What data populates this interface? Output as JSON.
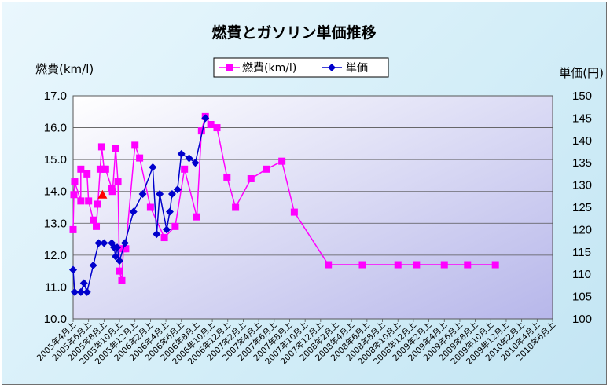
{
  "chart_data": {
    "type": "line",
    "title": "燃費とガソリン単価推移",
    "ylabel_left": "燃費(km/l)",
    "ylabel_right": "単価(円)",
    "ylim_left": [
      10.0,
      17.0
    ],
    "yticks_left": [
      "10.0",
      "11.0",
      "12.0",
      "13.0",
      "14.0",
      "15.0",
      "16.0",
      "17.0"
    ],
    "ylim_right": [
      100,
      150
    ],
    "yticks_right": [
      "100",
      "105",
      "110",
      "115",
      "120",
      "125",
      "130",
      "135",
      "140",
      "145",
      "150"
    ],
    "grid": true,
    "legend": "top-center",
    "categories": [
      "2005年4月上",
      "2005年6月上",
      "2005年8月上",
      "2005年10月上",
      "2005年12月上",
      "2006年2月上",
      "2006年4月上",
      "2006年6月上",
      "2006年8月上",
      "2006年10月上",
      "2006年12月上",
      "2007年2月上",
      "2007年4月上",
      "2007年6月上",
      "2007年8月上",
      "2007年10月上",
      "2007年12月上",
      "2008年2月上",
      "2008年4月上",
      "2008年6月上",
      "2008年8月上",
      "2008年10月上",
      "2008年12月上",
      "2009年2月上",
      "2009年4月上",
      "2009年6月上",
      "2009年8月上",
      "2009年10月上",
      "2009年12月上",
      "2010年2月上",
      "2010年4月上",
      "2010年6月上"
    ],
    "marker": {
      "x": 1.9,
      "value": 13.9,
      "color": "#ff0000"
    },
    "series": [
      {
        "name": "燃費(km/l)",
        "axis": "left",
        "color": "#ff00ff",
        "x": [
          0.0,
          0.05,
          0.1,
          0.5,
          0.5,
          0.9,
          1.0,
          1.3,
          1.5,
          1.6,
          1.75,
          1.85,
          2.0,
          2.1,
          2.5,
          2.55,
          2.75,
          2.9,
          3.0,
          3.15,
          3.25,
          3.4,
          4.0,
          4.3,
          5.0,
          5.9,
          6.6,
          7.2,
          8.0,
          8.3,
          8.55,
          8.9,
          9.3,
          9.95,
          10.5,
          11.5,
          12.5,
          13.5,
          14.3,
          16.5,
          18.7,
          21.0,
          22.2,
          24.0,
          25.5,
          27.3
        ],
        "values": [
          12.8,
          13.9,
          14.3,
          13.7,
          14.7,
          14.55,
          13.7,
          13.1,
          12.9,
          13.6,
          14.7,
          15.4,
          14.7,
          14.7,
          14.1,
          14.0,
          15.35,
          14.3,
          11.5,
          11.2,
          12.2,
          12.2,
          15.45,
          15.05,
          13.5,
          12.55,
          12.9,
          14.7,
          13.2,
          15.9,
          16.35,
          16.1,
          16.0,
          14.45,
          13.5,
          14.4,
          14.7,
          14.95,
          13.35,
          11.7,
          11.7,
          11.7,
          11.7,
          11.7,
          11.7,
          11.7
        ]
      },
      {
        "name": "単価",
        "axis": "right",
        "color": "#0000cc",
        "x": [
          0.0,
          0.1,
          0.5,
          0.7,
          0.9,
          1.3,
          1.65,
          2.0,
          2.5,
          2.65,
          2.75,
          2.85,
          3.0,
          3.35,
          3.9,
          4.5,
          5.15,
          5.4,
          5.6,
          6.05,
          6.25,
          6.4,
          6.75,
          7.0,
          7.5,
          7.9,
          8.55
        ],
        "values": [
          111,
          106,
          106,
          108,
          106,
          112,
          117,
          117,
          117,
          116,
          114,
          116,
          113,
          117,
          124,
          128,
          134,
          119,
          128,
          120,
          124,
          128,
          129,
          137,
          136,
          135,
          145
        ]
      }
    ]
  }
}
